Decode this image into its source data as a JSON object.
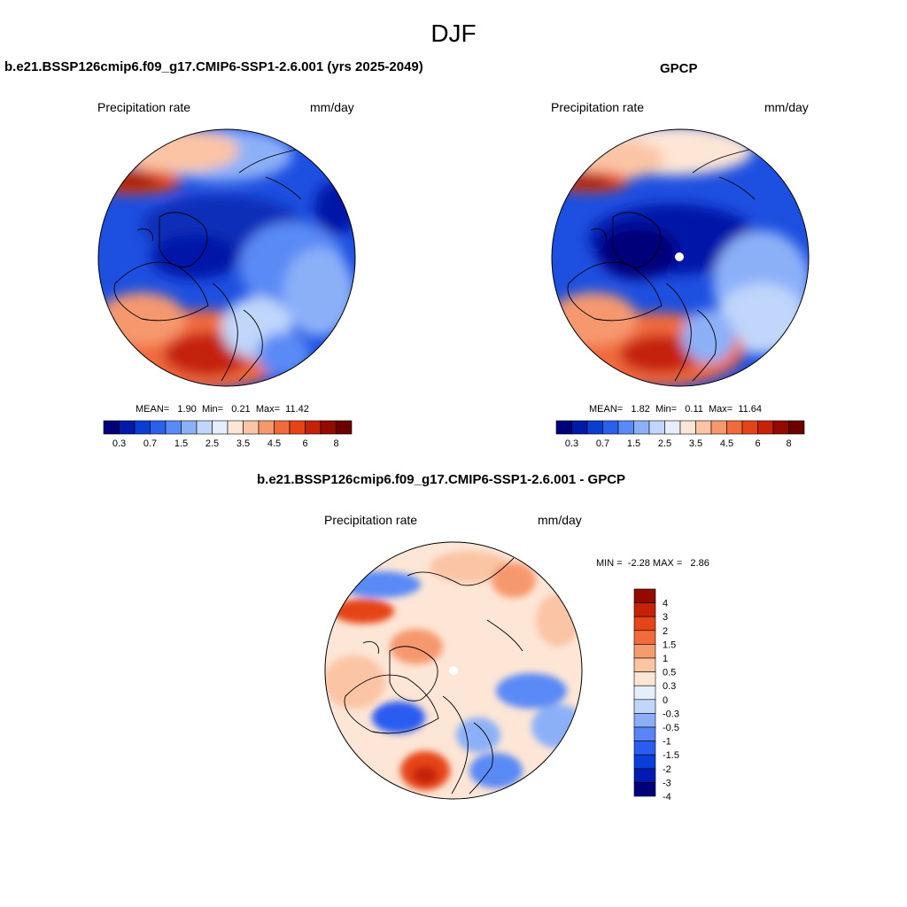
{
  "figure": {
    "title": "DJF"
  },
  "panels": [
    {
      "title": "b.e21.BSSP126cmip6.f09_g17.CMIP6-SSP1-2.6.001 (yrs 2025-2049)",
      "left_label": "Precipitation rate",
      "right_label": "mm/day",
      "stats": {
        "mean_label": "MEAN=",
        "mean": "1.90",
        "min_label": "Min=",
        "min": "0.21",
        "max_label": "Max=",
        "max": "11.42"
      }
    },
    {
      "title": "GPCP",
      "left_label": "Precipitation rate",
      "right_label": "mm/day",
      "stats": {
        "mean_label": "MEAN=",
        "mean": "1.82",
        "min_label": "Min=",
        "min": "0.11",
        "max_label": "Max=",
        "max": "11.64"
      }
    },
    {
      "title": "b.e21.BSSP126cmip6.f09_g17.CMIP6-SSP1-2.6.001 - GPCP",
      "left_label": "Precipitation rate",
      "right_label": "mm/day",
      "stats": {
        "min_label": "MIN =",
        "min": "-2.28",
        "max_label": "MAX =",
        "max": "2.86"
      }
    }
  ],
  "colorbars": {
    "abs": {
      "colors": [
        "#00007a",
        "#0019a8",
        "#0a3ed0",
        "#2b60ec",
        "#5a8af5",
        "#8cb0f8",
        "#c0d6fa",
        "#e6eefc",
        "#fde6d6",
        "#fbc4a4",
        "#f6986e",
        "#f06a3c",
        "#e54418",
        "#c52208",
        "#950a00",
        "#6a0000"
      ],
      "labels": [
        "0.3",
        "0.7",
        "1.5",
        "2.5",
        "3.5",
        "4.5",
        "6",
        "8"
      ]
    },
    "diff": {
      "colors": [
        "#00007a",
        "#0019b0",
        "#0a3ed8",
        "#2b5cf0",
        "#5a84f5",
        "#8caef8",
        "#c0d6fa",
        "#e6eefc",
        "#fde6d6",
        "#fbc4a4",
        "#f69a70",
        "#f06a3c",
        "#e54418",
        "#c52208",
        "#950a00"
      ],
      "labels": [
        "-4",
        "-3",
        "-2",
        "-1.5",
        "-1",
        "-0.5",
        "-0.3",
        "0",
        "0.3",
        "0.5",
        "1",
        "1.5",
        "2",
        "3",
        "4"
      ]
    }
  }
}
